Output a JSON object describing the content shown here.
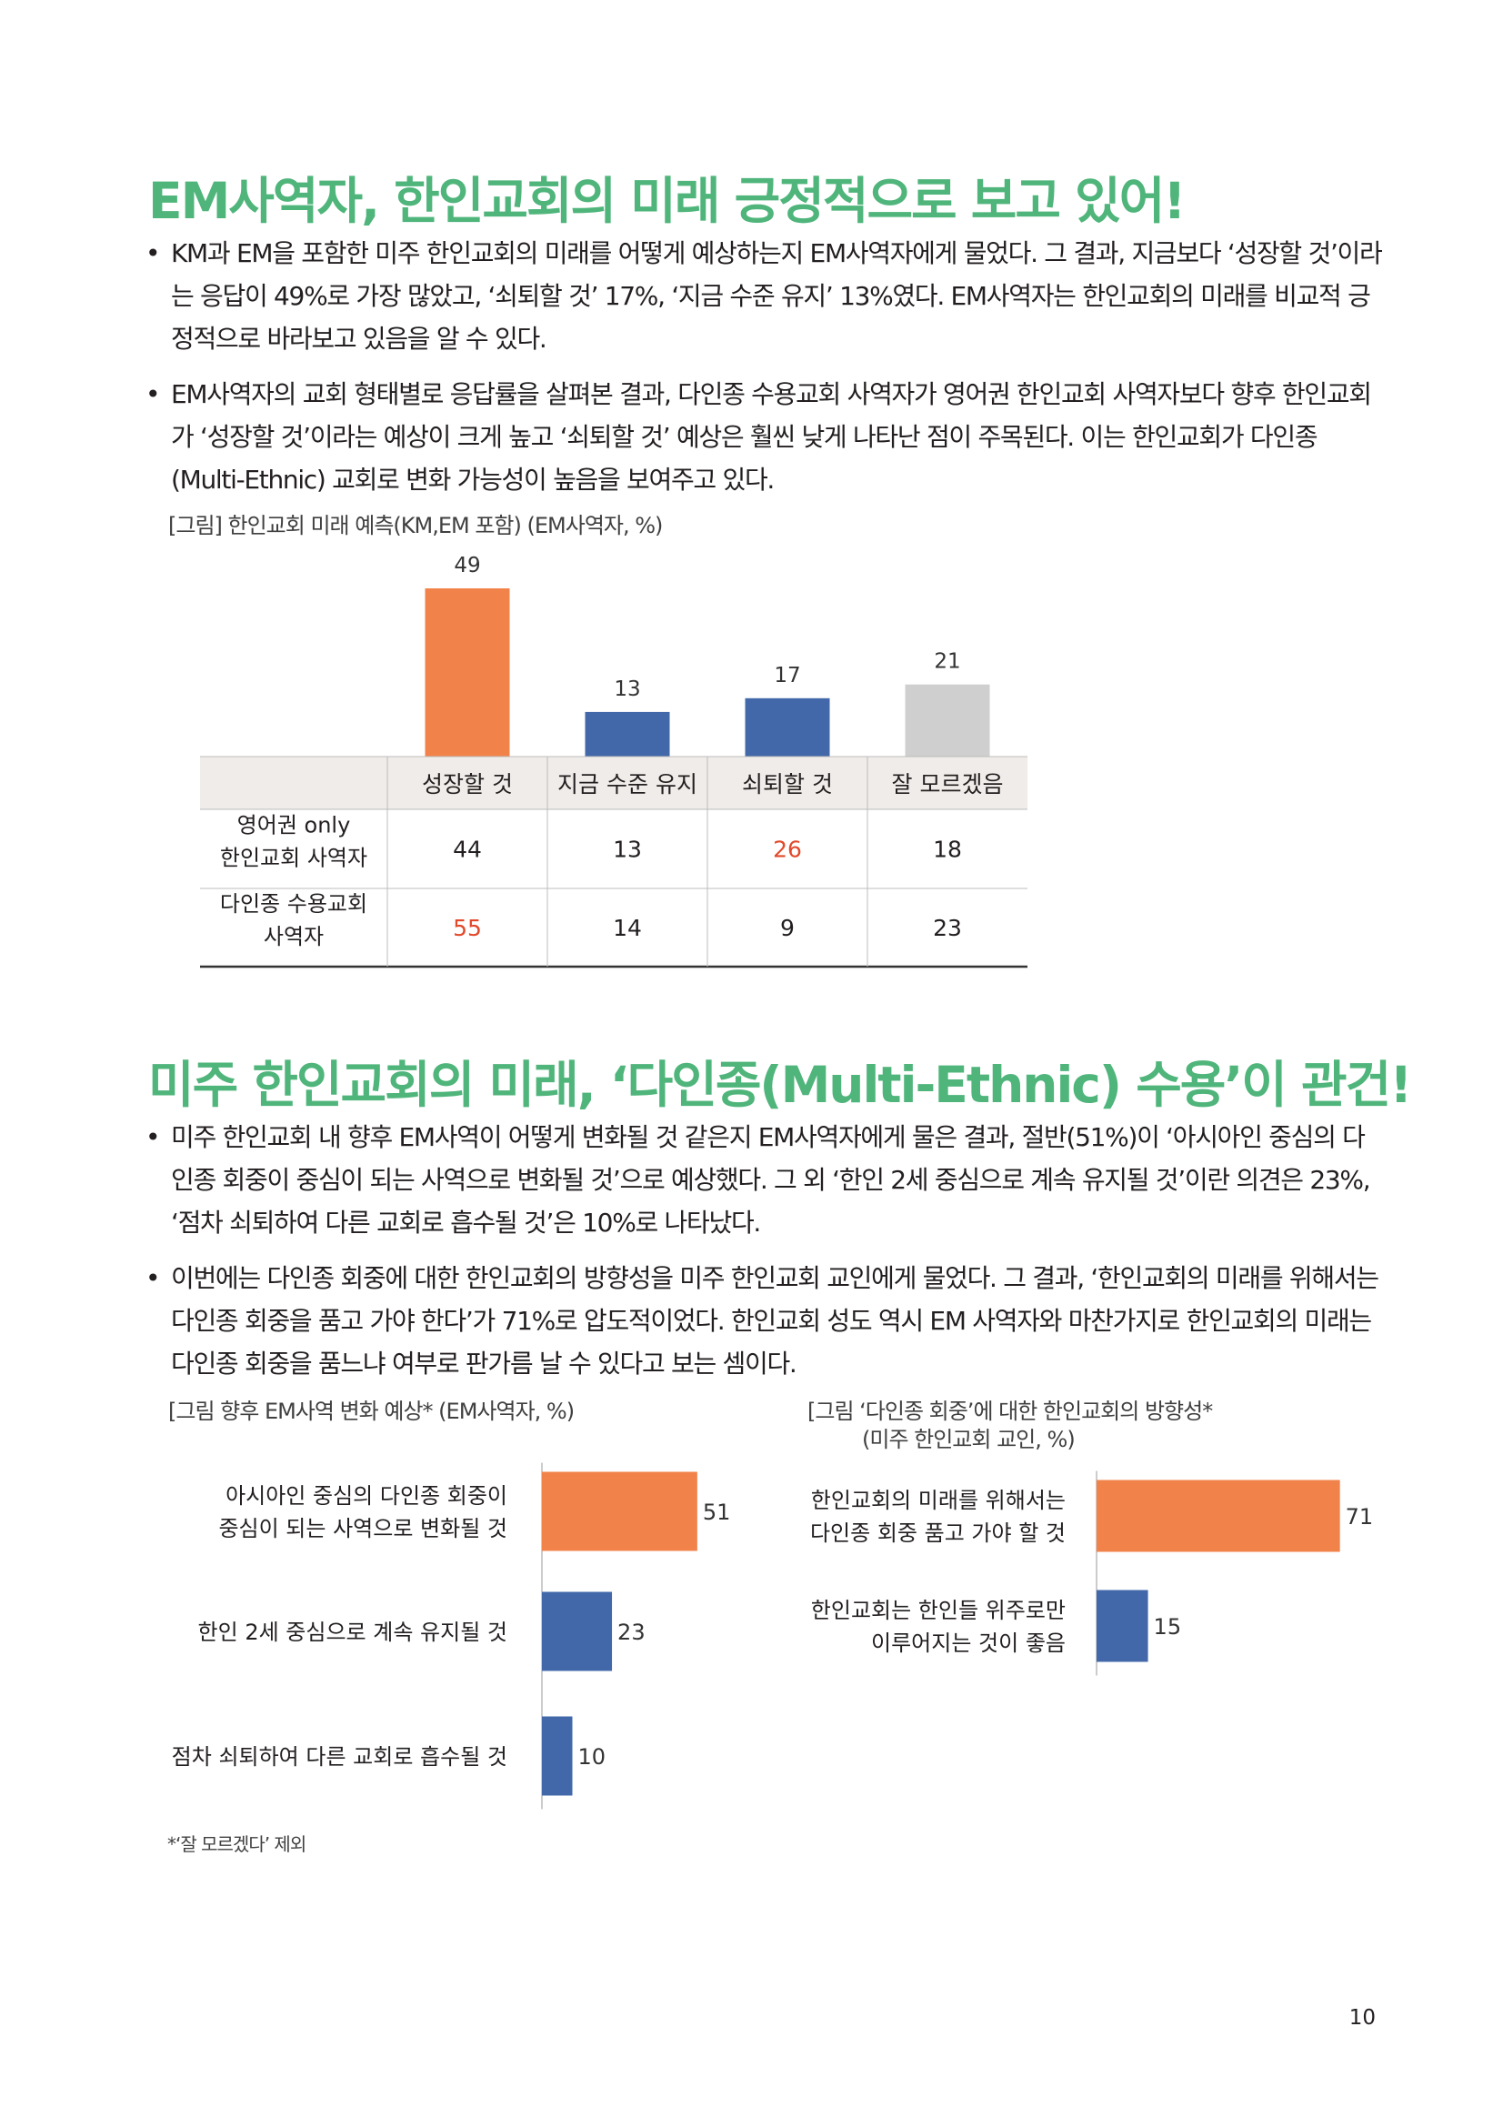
{
  "section1": {
    "heading": "EM사역자, 한인교회의 미래 긍정적으로 보고 있어!",
    "bullets": [
      "KM과 EM을 포함한 미주 한인교회의 미래를 어떻게 예상하는지 EM사역자에게 물었다. 그 결과, 지금보다 ‘성장할 것’이라는 응답이 49%로 가장 많았고, ‘쇠퇴할 것’ 17%, ‘지금 수준 유지’ 13%였다. EM사역자는 한인교회의 미래를 비교적 긍정적으로 바라보고 있음을 알 수 있다.",
      "EM사역자의 교회 형태별로 응답률을 살펴본 결과, 다인종 수용교회 사역자가 영어권 한인교회 사역자보다 향후 한인교회가 ‘성장할 것’이라는 예상이 크게 높고 ‘쇠퇴할 것’ 예상은 훨씬 낮게 나타난 점이 주목된다. 이는 한인교회가 다인종(Multi-Ethnic) 교회로 변화 가능성이 높음을 보여주고 있다."
    ],
    "figure_caption": "[그림] 한인교회 미래 예측(KM,EM 포함) (EM사역자, %)"
  },
  "section2": {
    "heading": "미주 한인교회의 미래, ‘다인종(Multi-Ethnic) 수용’이 관건!",
    "bullets": [
      "미주 한인교회 내 향후 EM사역이 어떻게 변화될 것 같은지 EM사역자에게 물은 결과, 절반(51%)이 ‘아시아인 중심의 다인종 회중이 중심이 되는 사역으로 변화될 것’으로 예상했다. 그 외 ‘한인 2세 중심으로 계속 유지될 것’이란 의견은 23%, ‘점차 쇠퇴하여 다른 교회로 흡수될 것’은 10%로 나타났다.",
      "이번에는 다인종 회중에 대한 한인교회의 방향성을 미주 한인교회 교인에게 물었다. 그 결과, ‘한인교회의 미래를 위해서는 다인종 회중을 품고 가야 한다’가 71%로 압도적이었다. 한인교회 성도 역시 EM 사역자와 마찬가지로 한인교회의 미래는 다인종 회중을 품느냐 여부로 판가름 날 수 있다고 보는 셈이다."
    ],
    "left_caption": "[그림 향후 EM사역 변화 예상* (EM사역자, %)",
    "right_caption_line1": "[그림 ‘다인종 회중’에 대한 한인교회의 방향성*",
    "right_caption_line2": "(미주 한인교회 교인, %)",
    "footnote": "*‘잘 모르겠다’ 제외"
  },
  "page_number": "10",
  "colors": {
    "heading_green": "#4fb57b",
    "orange": "#f1824a",
    "blue": "#4268a9",
    "gray": "#cfcfcf",
    "highlight_red": "#e2492b",
    "table_header_bg": "#efece9"
  },
  "chart_data": [
    {
      "type": "bar",
      "categories": [
        "성장할 것",
        "지금 수준 유지",
        "쇠퇴할 것",
        "잘 모르겠음"
      ],
      "values": [
        49,
        13,
        17,
        21
      ],
      "bar_colors": [
        "#f1824a",
        "#4268a9",
        "#4268a9",
        "#cfcfcf"
      ],
      "ylim": [
        0,
        49
      ],
      "table": {
        "row_labels": [
          [
            "영어권 only",
            "한인교회 사역자"
          ],
          [
            "다인종 수용교회",
            "사역자"
          ]
        ],
        "rows": [
          [
            "44",
            "13",
            "26",
            "18"
          ],
          [
            "55",
            "14",
            "9",
            "23"
          ]
        ],
        "highlighted": [
          [
            0,
            2
          ],
          [
            1,
            0
          ]
        ]
      }
    },
    {
      "type": "bar",
      "orientation": "horizontal",
      "categories": [
        [
          "아시아인 중심의 다인종 회중이",
          "중심이 되는 사역으로 변화될 것"
        ],
        [
          "한인 2세 중심으로 계속 유지될 것"
        ],
        [
          "점차 쇠퇴하여 다른 교회로 흡수될 것"
        ]
      ],
      "values": [
        51,
        23,
        10
      ],
      "bar_colors": [
        "#f1824a",
        "#4268a9",
        "#4268a9"
      ]
    },
    {
      "type": "bar",
      "orientation": "horizontal",
      "categories": [
        [
          "한인교회의 미래를 위해서는",
          "다인종 회중 품고 가야 할 것"
        ],
        [
          "한인교회는 한인들 위주로만",
          "이루어지는 것이 좋음"
        ]
      ],
      "values": [
        71,
        15
      ],
      "bar_colors": [
        "#f1824a",
        "#4268a9"
      ]
    }
  ]
}
